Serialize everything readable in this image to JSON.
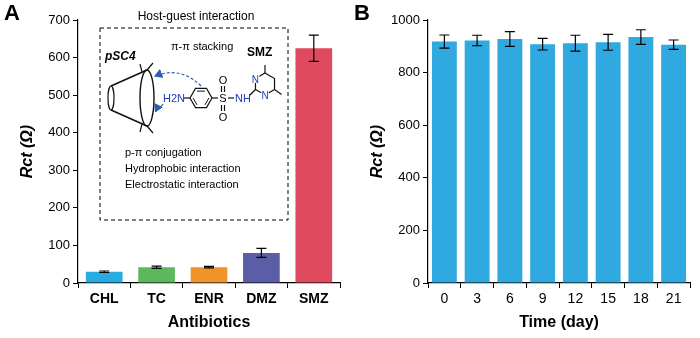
{
  "chart_data": [
    {
      "type": "bar",
      "panel_label": "A",
      "x_label": "Antibiotics",
      "y_label": "Rct (Ω)",
      "categories": [
        "CHL",
        "TC",
        "ENR",
        "DMZ",
        "SMZ"
      ],
      "values": [
        30,
        42,
        42,
        80,
        625
      ],
      "errors": [
        2,
        3,
        2,
        12,
        35
      ],
      "colors": [
        "#29abe2",
        "#5cb85c",
        "#f0932b",
        "#5b5ea6",
        "#e04a5f"
      ],
      "ylim": [
        0,
        700
      ],
      "yticks": [
        0,
        100,
        200,
        300,
        400,
        500,
        600,
        700
      ],
      "grid": false,
      "annotations": {
        "title": "Host-guest interaction",
        "host": "pSC4",
        "guest": "SMZ",
        "arrow_label": "π-π stacking",
        "interactions": [
          "p-π conjugation",
          "Hydrophobic interaction",
          "Electrostatic interaction"
        ],
        "atoms": [
          "H2N",
          "S",
          "O",
          "O",
          "NH",
          "N",
          "N"
        ]
      }
    },
    {
      "type": "bar",
      "panel_label": "B",
      "x_label": "Time (day)",
      "y_label": "Rct (Ω)",
      "categories": [
        "0",
        "3",
        "6",
        "9",
        "12",
        "15",
        "18",
        "21"
      ],
      "values": [
        918,
        922,
        928,
        908,
        912,
        915,
        935,
        906
      ],
      "errors": [
        25,
        20,
        28,
        22,
        30,
        30,
        28,
        18
      ],
      "color": "#30a8e0",
      "ylim": [
        0,
        1000
      ],
      "yticks": [
        0,
        200,
        400,
        600,
        800,
        1000
      ],
      "grid": false
    }
  ]
}
